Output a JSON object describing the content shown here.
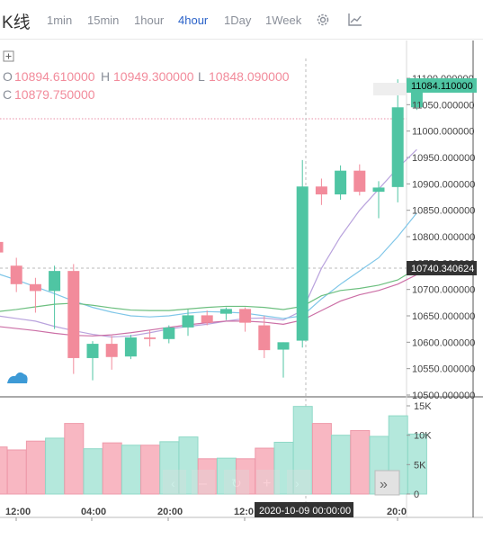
{
  "header": {
    "title": "K线",
    "timeframes": [
      "1min",
      "15min",
      "1hour",
      "4hour",
      "1Day",
      "1Week"
    ],
    "active_timeframe": "4hour",
    "icons": [
      "settings-gear-icon",
      "indicator-chart-icon"
    ]
  },
  "ohlc_info": {
    "o_label": "O",
    "o_value": "10894.610000",
    "h_label": "H",
    "h_value": "10949.300000",
    "l_label": "L",
    "l_value": "10848.090000",
    "c_label": "C",
    "c_value": "10879.750000"
  },
  "badges": {
    "last_price": "11084.110000",
    "crosshair_price": "10740.340624",
    "crosshair_time": "2020-10-09 00:00:00"
  },
  "colors": {
    "up": "#4fc5a3",
    "down": "#f28b9b",
    "vol_up": "#b4e8dc",
    "vol_down": "#f8b7c2",
    "ma_purple": "#b9a3dd",
    "ma_blue": "#7fc6e8",
    "ma_green": "#6cbf7f",
    "ma_pink": "#cc6fa6",
    "active_tab": "#2a62c9"
  },
  "chart_data": {
    "type": "candlestick",
    "price_ticks": [
      "11100.000000",
      "11050.000000",
      "11000.000000",
      "10950.000000",
      "10900.000000",
      "10850.000000",
      "10800.000000",
      "10750.000000",
      "10700.000000",
      "10650.000000",
      "10600.000000",
      "10550.000000",
      "10500.000000"
    ],
    "price_ylim": [
      10500,
      11100
    ],
    "volume_ticks": [
      "15K",
      "10K",
      "5K",
      "0"
    ],
    "volume_ylim": [
      0,
      15000
    ],
    "time_labels": [
      "12:00",
      "04:00",
      "20:00",
      "12:0",
      "20:0"
    ],
    "candles": [
      {
        "o": 10790,
        "h": 10800,
        "l": 10768,
        "c": 10770,
        "v": 8000
      },
      {
        "o": 10745,
        "h": 10760,
        "l": 10695,
        "c": 10710,
        "v": 7500
      },
      {
        "o": 10710,
        "h": 10722,
        "l": 10656,
        "c": 10697,
        "v": 9000
      },
      {
        "o": 10697,
        "h": 10745,
        "l": 10625,
        "c": 10735,
        "v": 9500
      },
      {
        "o": 10735,
        "h": 10748,
        "l": 10540,
        "c": 10570,
        "v": 12000
      },
      {
        "o": 10570,
        "h": 10602,
        "l": 10528,
        "c": 10597,
        "v": 7700
      },
      {
        "o": 10597,
        "h": 10612,
        "l": 10548,
        "c": 10572,
        "v": 8700
      },
      {
        "o": 10573,
        "h": 10614,
        "l": 10568,
        "c": 10609,
        "v": 8300
      },
      {
        "o": 10609,
        "h": 10622,
        "l": 10592,
        "c": 10606,
        "v": 8300
      },
      {
        "o": 10606,
        "h": 10632,
        "l": 10598,
        "c": 10628,
        "v": 8900
      },
      {
        "o": 10628,
        "h": 10662,
        "l": 10612,
        "c": 10651,
        "v": 9700
      },
      {
        "o": 10651,
        "h": 10660,
        "l": 10632,
        "c": 10637,
        "v": 6000
      },
      {
        "o": 10654,
        "h": 10666,
        "l": 10642,
        "c": 10663,
        "v": 6100
      },
      {
        "o": 10663,
        "h": 10666,
        "l": 10620,
        "c": 10637,
        "v": 6000
      },
      {
        "o": 10632,
        "h": 10650,
        "l": 10570,
        "c": 10585,
        "v": 7800
      },
      {
        "o": 10586,
        "h": 10600,
        "l": 10533,
        "c": 10600,
        "v": 8800
      },
      {
        "o": 10603,
        "h": 10945,
        "l": 10590,
        "c": 10895,
        "v": 14900
      },
      {
        "o": 10895,
        "h": 10910,
        "l": 10860,
        "c": 10880,
        "v": 12000
      },
      {
        "o": 10880,
        "h": 10935,
        "l": 10870,
        "c": 10925,
        "v": 10000
      },
      {
        "o": 10925,
        "h": 10937,
        "l": 10878,
        "c": 10885,
        "v": 10800
      },
      {
        "o": 10885,
        "h": 10905,
        "l": 10835,
        "c": 10893,
        "v": 9800
      },
      {
        "o": 10894,
        "h": 11098,
        "l": 10865,
        "c": 11045,
        "v": 13300
      },
      {
        "o": 11045,
        "h": 11098,
        "l": 11040,
        "c": 11084,
        "v": 10200
      }
    ],
    "moving_averages": [
      {
        "color": "#b9a3dd",
        "values": [
          10650,
          10645,
          10640,
          10630,
          10622,
          10615,
          10610,
          10612,
          10618,
          10625,
          10630,
          10634,
          10640,
          10645,
          10646,
          10642,
          10660,
          10740,
          10800,
          10850,
          10890,
          10930,
          10965
        ]
      },
      {
        "color": "#7fc6e8",
        "values": [
          10730,
          10718,
          10705,
          10692,
          10678,
          10666,
          10657,
          10650,
          10648,
          10650,
          10655,
          10658,
          10657,
          10655,
          10650,
          10645,
          10650,
          10682,
          10710,
          10735,
          10760,
          10800,
          10845
        ]
      },
      {
        "color": "#6cbf7f",
        "values": [
          10658,
          10662,
          10667,
          10672,
          10674,
          10670,
          10665,
          10661,
          10660,
          10660,
          10663,
          10666,
          10668,
          10668,
          10666,
          10662,
          10668,
          10688,
          10698,
          10702,
          10708,
          10718,
          10740
        ]
      },
      {
        "color": "#cc6fa6",
        "values": [
          10630,
          10626,
          10622,
          10617,
          10613,
          10612,
          10614,
          10618,
          10623,
          10628,
          10633,
          10637,
          10640,
          10640,
          10638,
          10634,
          10642,
          10660,
          10678,
          10690,
          10698,
          10710,
          10728
        ]
      }
    ]
  }
}
